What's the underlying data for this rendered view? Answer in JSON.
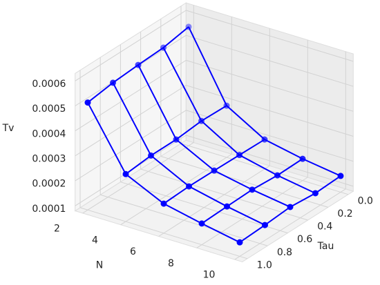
{
  "chart_data": {
    "type": "wireframe3d",
    "x_label": "N",
    "y_label": "Tau",
    "z_label": "Tv",
    "x": [
      2,
      4,
      6,
      8,
      10
    ],
    "y": [
      1.0,
      0.75,
      0.5,
      0.25,
      0.0
    ],
    "z": [
      [
        0.00051,
        0.000525,
        0.000532,
        0.000537,
        0.000556
      ],
      [
        0.00027,
        0.00028,
        0.00028,
        0.00029,
        0.000287
      ],
      [
        0.000198,
        0.000203,
        0.000202,
        0.0002,
        0.000198
      ],
      [
        0.000165,
        0.000169,
        0.000172,
        0.000165,
        0.000167
      ],
      [
        0.000136,
        0.000141,
        0.000149,
        0.00014,
        0.000145
      ]
    ],
    "color": "#0000ff",
    "xlim": [
      1.6,
      10.4
    ],
    "ylim": [
      -0.05,
      1.05
    ],
    "zlim": [
      8e-05,
      0.00063
    ],
    "xticks": [
      2,
      4,
      6,
      8,
      10
    ],
    "yticks": [
      {
        "value": 0,
        "label": "0.0"
      },
      0.2,
      0.4,
      0.6,
      0.8,
      {
        "value": 1,
        "label": "1.0"
      }
    ],
    "zticks": [
      0.0001,
      0.0002,
      0.0003,
      0.0004,
      0.0005,
      0.0006
    ],
    "grid": true
  }
}
